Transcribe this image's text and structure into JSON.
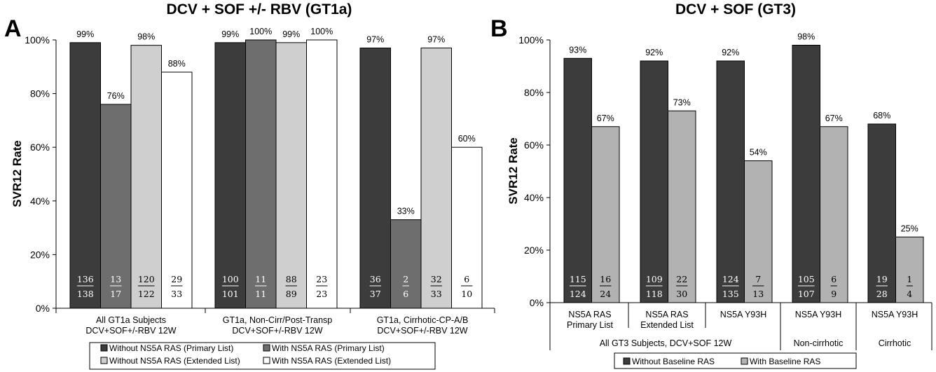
{
  "panel_a": {
    "letter": "A",
    "title": "DCV + SOF +/- RBV (GT1a)",
    "ylabel": "SVR12 Rate",
    "yticks": [
      "0%",
      "20%",
      "40%",
      "60%",
      "80%",
      "100%"
    ],
    "groups": [
      {
        "line1": "All GT1a Subjects",
        "line2": "DCV+SOF+/-RBV 12W"
      },
      {
        "line1": "GT1a, Non-Cirr/Post-Transp",
        "line2": "DCV+SOF+/-RBV 12W"
      },
      {
        "line1": "GT1a, Cirrhotic-CP-A/B",
        "line2": "DCV+SOF+/-RBV 12W"
      }
    ],
    "legend": [
      "Without NS5A RAS (Primary List)",
      "With NS5A RAS (Primary List)",
      "Without NS5A RAS (Extended List)",
      "With NS5A RAS (Extended List)"
    ]
  },
  "panel_b": {
    "letter": "B",
    "title": "DCV + SOF (GT3)",
    "ylabel": "SVR12 Rate",
    "yticks": [
      "0%",
      "20%",
      "40%",
      "60%",
      "80%",
      "100%"
    ],
    "cat_labels": [
      {
        "line1": "NS5A RAS",
        "line2": "Primary List"
      },
      {
        "line1": "NS5A RAS",
        "line2": "Extended List"
      },
      {
        "line1": "NS5A Y93H",
        "line2": ""
      },
      {
        "line1": "NS5A Y93H",
        "line2": ""
      },
      {
        "line1": "NS5A Y93H",
        "line2": ""
      }
    ],
    "super_labels": [
      "All GT3 Subjects, DCV+SOF 12W",
      "Non-cirrhotic",
      "Cirrhotic"
    ],
    "legend": [
      "Without Baseline RAS",
      "With Baseline RAS"
    ]
  },
  "colors": {
    "dark": "#3c3c3c",
    "mid": "#6e6e6e",
    "light": "#cfcfcf",
    "white": "#ffffff",
    "grayB": "#b2b2b2"
  },
  "chart_data": [
    {
      "type": "bar",
      "title": "DCV + SOF +/- RBV (GT1a)",
      "ylabel": "SVR12 Rate",
      "ylim": [
        0,
        100
      ],
      "categories": [
        "All GT1a Subjects DCV+SOF+/-RBV 12W",
        "GT1a, Non-Cirr/Post-Transp DCV+SOF+/-RBV 12W",
        "GT1a, Cirrhotic-CP-A/B DCV+SOF+/-RBV 12W"
      ],
      "series": [
        {
          "name": "Without NS5A RAS (Primary List)",
          "values": [
            99,
            99,
            97
          ],
          "value_labels": [
            "99%",
            "99%",
            "97%"
          ],
          "numerators": [
            "136",
            "100",
            "36"
          ],
          "denominators": [
            "138",
            "101",
            "37"
          ],
          "color": "#3c3c3c"
        },
        {
          "name": "With NS5A RAS (Primary List)",
          "values": [
            76,
            100,
            33
          ],
          "value_labels": [
            "76%",
            "100%",
            "33%"
          ],
          "numerators": [
            "13",
            "11",
            "2"
          ],
          "denominators": [
            "17",
            "11",
            "6"
          ],
          "color": "#6e6e6e"
        },
        {
          "name": "Without NS5A RAS (Extended List)",
          "values": [
            98,
            99,
            97
          ],
          "value_labels": [
            "98%",
            "99%",
            "97%"
          ],
          "numerators": [
            "120",
            "88",
            "32"
          ],
          "denominators": [
            "122",
            "89",
            "33"
          ],
          "color": "#cfcfcf"
        },
        {
          "name": "With NS5A RAS (Extended List)",
          "values": [
            88,
            100,
            60
          ],
          "value_labels": [
            "88%",
            "100%",
            "60%"
          ],
          "numerators": [
            "29",
            "23",
            "6"
          ],
          "denominators": [
            "33",
            "23",
            "10"
          ],
          "color": "#ffffff"
        }
      ],
      "legend_position": "bottom"
    },
    {
      "type": "bar",
      "title": "DCV + SOF (GT3)",
      "ylabel": "SVR12 Rate",
      "ylim": [
        0,
        100
      ],
      "categories": [
        "NS5A RAS Primary List",
        "NS5A RAS Extended List",
        "NS5A Y93H",
        "NS5A Y93H",
        "NS5A Y93H"
      ],
      "series": [
        {
          "name": "Without Baseline RAS",
          "values": [
            93,
            92,
            92,
            98,
            68
          ],
          "value_labels": [
            "93%",
            "92%",
            "92%",
            "98%",
            "68%"
          ],
          "numerators": [
            "115",
            "109",
            "124",
            "105",
            "19"
          ],
          "denominators": [
            "124",
            "118",
            "135",
            "107",
            "28"
          ],
          "color": "#3c3c3c"
        },
        {
          "name": "With Baseline RAS",
          "values": [
            67,
            73,
            54,
            67,
            25
          ],
          "value_labels": [
            "67%",
            "73%",
            "54%",
            "67%",
            "25%"
          ],
          "numerators": [
            "16",
            "22",
            "7",
            "6",
            "1"
          ],
          "denominators": [
            "24",
            "30",
            "13",
            "9",
            "4"
          ],
          "color": "#b2b2b2"
        }
      ],
      "legend_position": "bottom"
    }
  ]
}
